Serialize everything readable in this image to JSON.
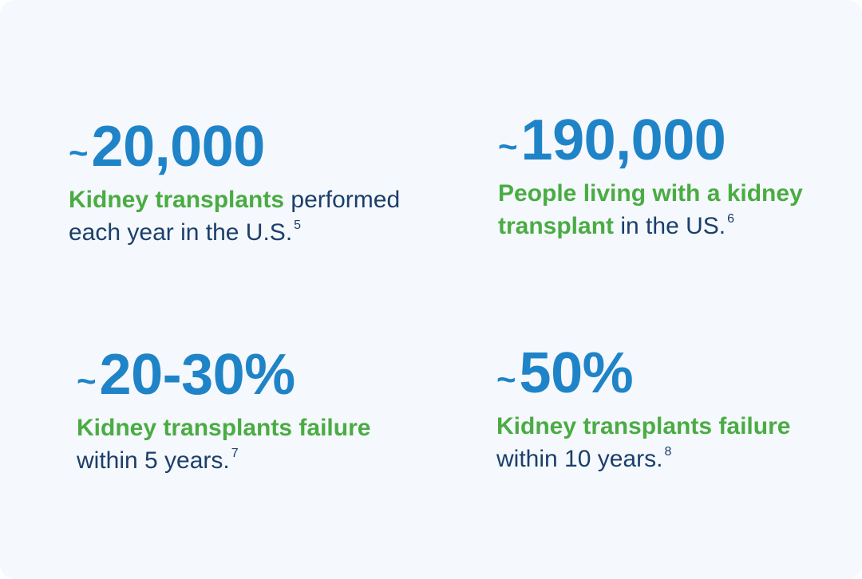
{
  "stats": [
    {
      "tilde": "~",
      "value": "20,000",
      "highlight": "Kidney transplants",
      "rest_line1": " performed",
      "rest_line2": "each year in the U.S.",
      "ref": "5"
    },
    {
      "tilde": "~",
      "value": "190,000",
      "highlight_line1": "People living with a kidney",
      "highlight_line2": "transplant",
      "rest": " in the US.",
      "ref": "6"
    },
    {
      "tilde": "~",
      "value": "20-30%",
      "highlight": "Kidney transplants failure",
      "rest": "within 5 years.",
      "ref": "7"
    },
    {
      "tilde": "~",
      "value": "50%",
      "highlight": "Kidney transplants failure",
      "rest": "within 10 years.",
      "ref": "8"
    }
  ],
  "colors": {
    "background": "#f5f8fc",
    "figure_blue": "#1f84c7",
    "highlight_green": "#4aac43",
    "body_navy": "#1b3f6b"
  }
}
